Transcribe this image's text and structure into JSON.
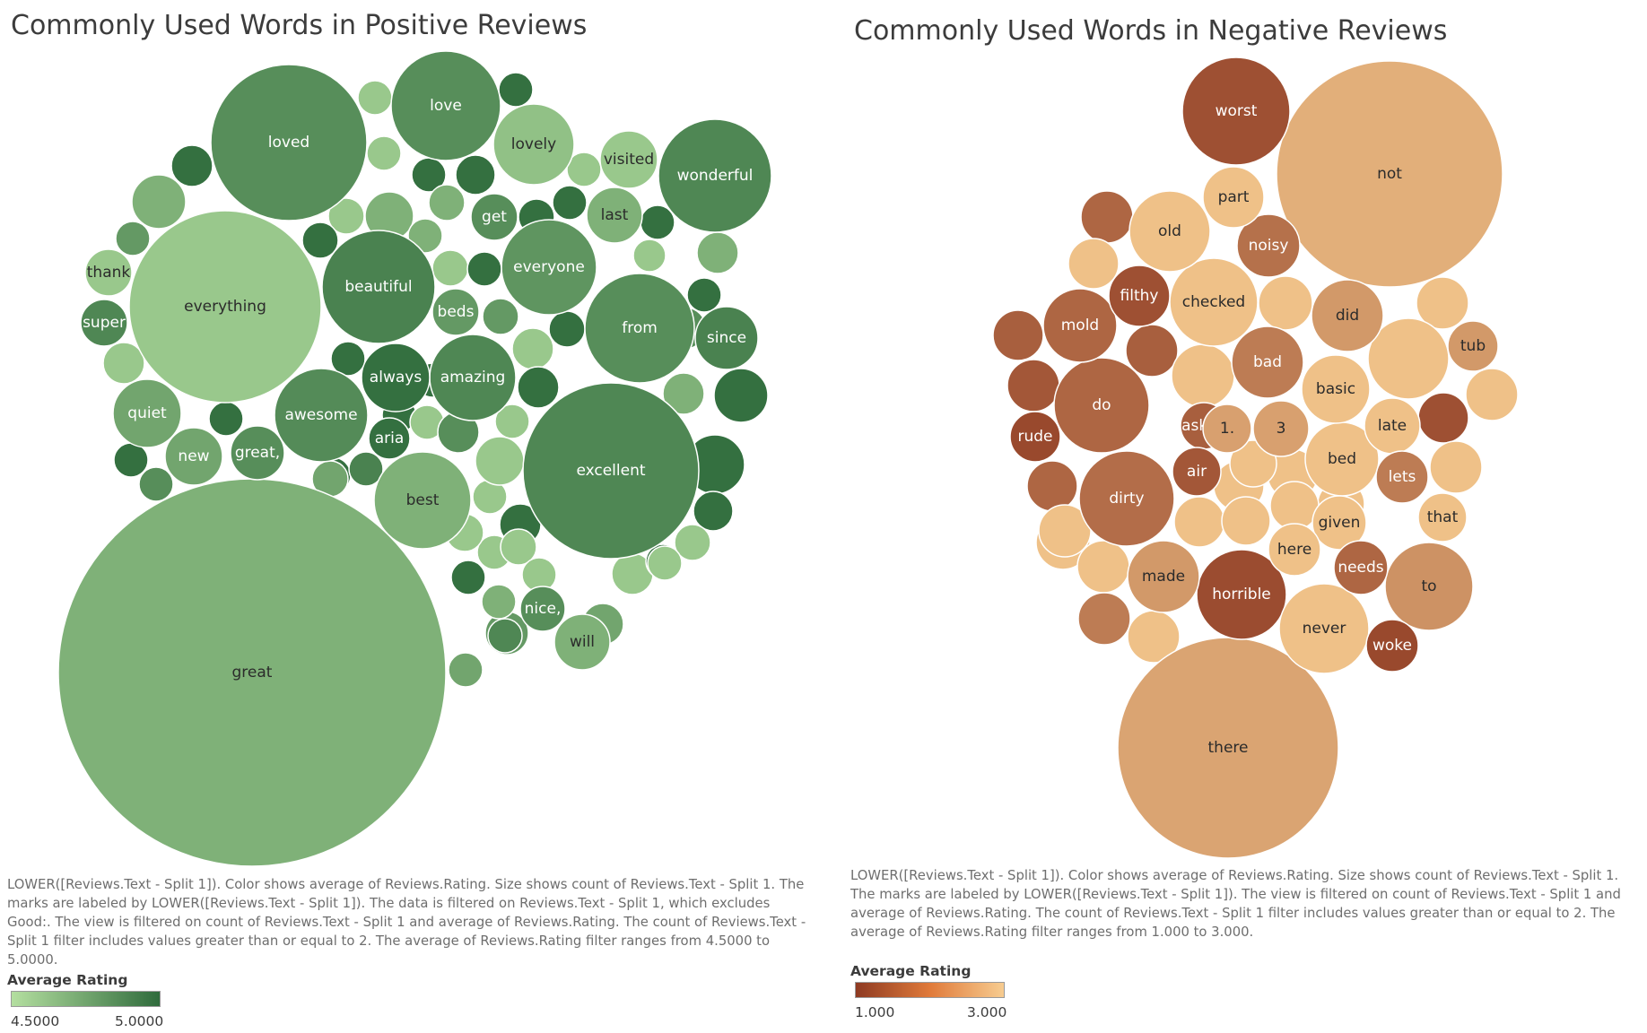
{
  "chart_data": [
    {
      "type": "bubble",
      "title": "Commonly Used Words in Positive Reviews",
      "caption": "LOWER([Reviews.Text - Split 1]).  Color shows average of Reviews.Rating.  Size shows count of Reviews.Text - Split 1.  The marks are labeled by LOWER([Reviews.Text - Split 1]). The data is filtered on Reviews.Text - Split 1, which excludes Good:. The view is filtered on count of Reviews.Text - Split 1 and average of Reviews.Rating. The count of Reviews.Text - Split 1 filter includes values greater than or equal to 2. The average of Reviews.Rating filter ranges from 4.5000 to 5.0000.",
      "legend": {
        "title": "Average Rating",
        "min_label": "4.5000",
        "max_label": "5.0000",
        "min": 4.5,
        "max": 5.0,
        "color_low": "#b4dfa0",
        "color_high": "#2f6b3c"
      },
      "words": [
        "great",
        "excellent",
        "everything",
        "loved",
        "wonderful",
        "from",
        "love",
        "beautiful",
        "everyone",
        "best",
        "awesome",
        "amazing",
        "lovely",
        "always",
        "quiet",
        "visited",
        "new",
        "great,",
        "last",
        "since",
        "nice,",
        "will",
        "thank",
        "super",
        "beds",
        "get",
        "aria"
      ],
      "ratings": [
        4.7,
        4.88,
        4.6,
        4.85,
        4.88,
        4.85,
        4.85,
        4.9,
        4.82,
        4.7,
        4.86,
        4.88,
        4.63,
        4.98,
        4.75,
        4.6,
        4.75,
        4.85,
        4.7,
        4.9,
        4.85,
        4.7,
        4.6,
        4.88,
        4.8,
        4.85,
        4.98
      ],
      "unlabeled_ratings": [
        4.6,
        4.98,
        4.98,
        4.7,
        4.8,
        4.6,
        4.98,
        4.98,
        4.7,
        4.6,
        4.98,
        4.7,
        4.7,
        4.6,
        4.98,
        4.98,
        4.98,
        4.6,
        4.98,
        4.8,
        4.6,
        4.98,
        4.6,
        4.98,
        4.98,
        4.6,
        4.98,
        4.6,
        4.98,
        4.98,
        4.7,
        4.7,
        4.98,
        4.6,
        4.6,
        4.98,
        4.85,
        4.85,
        4.98,
        4.85,
        4.98,
        4.6,
        4.98,
        4.6,
        4.6,
        4.6,
        4.98,
        4.6,
        4.98,
        4.8,
        4.7,
        4.75,
        4.98,
        4.6,
        4.98,
        4.6,
        4.98,
        4.75,
        4.88,
        4.98,
        4.9,
        4.75,
        4.6
      ]
    },
    {
      "type": "bubble",
      "title": "Commonly Used Words in Negative Reviews",
      "caption": "LOWER([Reviews.Text - Split 1]).  Color shows average of Reviews.Rating.  Size shows count of Reviews.Text - Split 1.  The marks are labeled by LOWER([Reviews.Text - Split 1]). The view is filtered on count of Reviews.Text - Split 1 and average of Reviews.Rating. The count of Reviews.Text - Split 1 filter includes values greater than or equal to 2. The average of Reviews.Rating filter ranges from 1.000 to 3.000.",
      "legend": {
        "title": "Average Rating",
        "min_label": "1.000",
        "max_label": "3.000",
        "min": 1.0,
        "max": 3.0,
        "color_low": "#8e3a22",
        "color_high": "#f7cc90"
      },
      "words": [
        "not",
        "there",
        "worst",
        "do",
        "dirty",
        "horrible",
        "checked",
        "never",
        "old",
        "bed",
        "bad",
        "to",
        "basic",
        "did",
        "mold",
        "made",
        "noisy",
        "filthy",
        "part",
        "late",
        "given",
        "here",
        "3",
        "asked",
        "rude",
        "woke",
        "lets",
        "1.",
        "air",
        "needs",
        "that",
        "tub"
      ],
      "ratings": [
        2.6,
        2.45,
        1.3,
        1.6,
        1.7,
        1.25,
        2.85,
        2.85,
        2.85,
        2.85,
        1.9,
        2.2,
        2.85,
        2.3,
        1.6,
        2.3,
        1.75,
        1.3,
        2.85,
        2.85,
        2.85,
        2.85,
        2.4,
        1.5,
        1.2,
        1.2,
        1.9,
        2.4,
        1.4,
        1.6,
        2.85,
        2.3
      ],
      "unlabeled_ratings": [
        1.6,
        2.85,
        1.5,
        1.4,
        1.5,
        2.85,
        2.85,
        2.85,
        2.85,
        1.3,
        2.85,
        2.85,
        2.85,
        2.85,
        2.85,
        2.85,
        1.6,
        2.85,
        2.85,
        1.9,
        2.85,
        2.85,
        2.85,
        2.85,
        2.85
      ]
    }
  ]
}
